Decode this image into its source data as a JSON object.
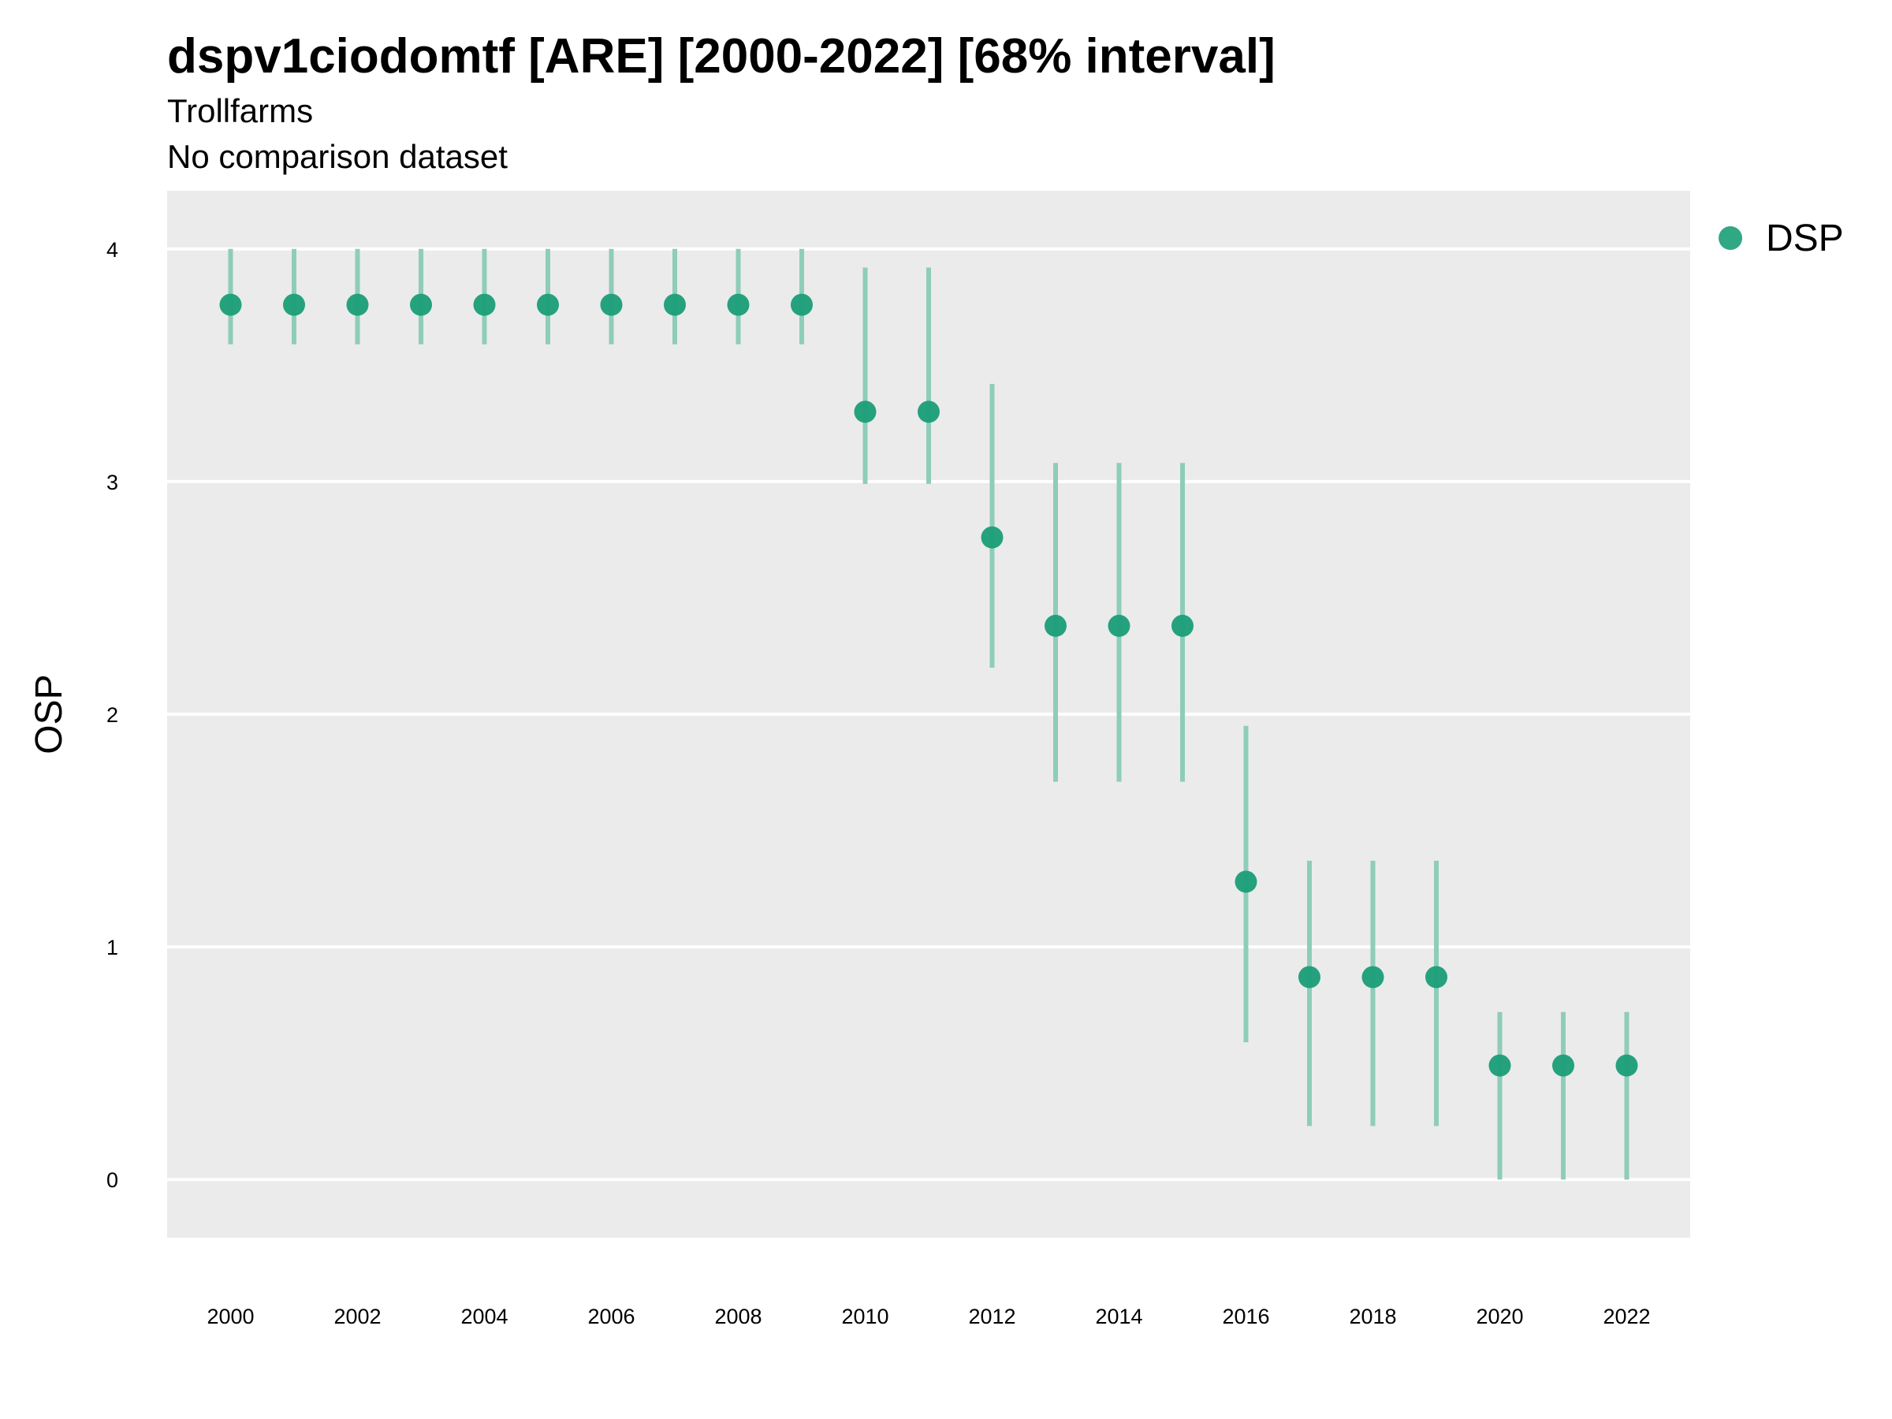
{
  "chart_data": {
    "type": "scatter",
    "title": "dspv1ciodomtf [ARE] [2000-2022] [68% interval]",
    "subtitle": [
      "Trollfarms",
      "No comparison dataset"
    ],
    "xlabel": "",
    "ylabel": "OSP",
    "xlim": [
      1999.0,
      2023.0
    ],
    "ylim": [
      -0.25,
      4.25
    ],
    "xticks": [
      2000,
      2002,
      2004,
      2006,
      2008,
      2010,
      2012,
      2014,
      2016,
      2018,
      2020,
      2022
    ],
    "xtick_labels": [
      "2000",
      "2002",
      "2004",
      "2006",
      "2008",
      "2010",
      "2012",
      "2014",
      "2016",
      "2018",
      "2020",
      "2022"
    ],
    "yticks": [
      0,
      1,
      2,
      3,
      4
    ],
    "ytick_labels": [
      "0",
      "1",
      "2",
      "3",
      "4"
    ],
    "grid": true,
    "legend_position": "right",
    "colors": {
      "point": "#1a9e77",
      "interval": "#8ecdb8",
      "panel": "#ebebeb",
      "grid": "#ffffff"
    },
    "series": [
      {
        "name": "DSP",
        "x": [
          2000,
          2001,
          2002,
          2003,
          2004,
          2005,
          2006,
          2007,
          2008,
          2009,
          2010,
          2011,
          2012,
          2013,
          2014,
          2015,
          2016,
          2017,
          2018,
          2019,
          2020,
          2021,
          2022
        ],
        "y": [
          3.76,
          3.76,
          3.76,
          3.76,
          3.76,
          3.76,
          3.76,
          3.76,
          3.76,
          3.76,
          3.3,
          3.3,
          2.76,
          2.38,
          2.38,
          2.38,
          1.28,
          0.87,
          0.87,
          0.87,
          0.49,
          0.49,
          0.49
        ],
        "lower": [
          3.59,
          3.59,
          3.59,
          3.59,
          3.59,
          3.59,
          3.59,
          3.59,
          3.59,
          3.59,
          2.99,
          2.99,
          2.2,
          1.71,
          1.71,
          1.71,
          0.59,
          0.23,
          0.23,
          0.23,
          0.0,
          0.0,
          0.0
        ],
        "upper": [
          4.0,
          4.0,
          4.0,
          4.0,
          4.0,
          4.0,
          4.0,
          4.0,
          4.0,
          4.0,
          3.92,
          3.92,
          3.42,
          3.08,
          3.08,
          3.08,
          1.95,
          1.37,
          1.37,
          1.37,
          0.72,
          0.72,
          0.72
        ]
      }
    ]
  }
}
